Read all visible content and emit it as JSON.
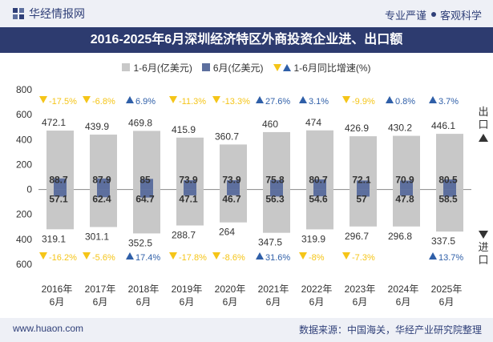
{
  "header": {
    "brand": "华经情报网",
    "tagline_left": "专业严谨",
    "tagline_right": "客观科学"
  },
  "title": "2016-2025年6月深圳经济特区外商投资企业进、出口额",
  "legend": {
    "s1": "1-6月(亿美元)",
    "s2": "6月(亿美元)",
    "s3": "1-6月同比增速(%)"
  },
  "side_labels": {
    "export_text": "出口",
    "import_text": "进口"
  },
  "footer": {
    "url": "www.huaon.com",
    "source": "数据来源：中国海关，华经产业研究院整理"
  },
  "colors": {
    "ytd_bar": "#c8c8c8",
    "june_bar": "#5d6f9e",
    "up": "#2f5fa8",
    "down": "#f5c518",
    "title_bg": "#2d3b6f"
  },
  "chart_data": {
    "type": "bar",
    "title": "2016-2025年6月深圳经济特区外商投资企业进、出口额",
    "categories": [
      "2016年\n6月",
      "2017年\n6月",
      "2018年\n6月",
      "2019年\n6月",
      "2020年\n6月",
      "2021年\n6月",
      "2022年\n6月",
      "2023年\n6月",
      "2024年\n6月",
      "2025年\n6月"
    ],
    "ylim": [
      -600,
      800
    ],
    "yticks": [
      {
        "value": 800,
        "label": "800"
      },
      {
        "value": 600,
        "label": "600"
      },
      {
        "value": 400,
        "label": "400"
      },
      {
        "value": 200,
        "label": "200"
      },
      {
        "value": 0,
        "label": "0"
      },
      {
        "value": -200,
        "label": "200"
      },
      {
        "value": -400,
        "label": "400"
      },
      {
        "value": -600,
        "label": "600"
      }
    ],
    "export": {
      "ytd": [
        472.1,
        439.9,
        469.8,
        415.9,
        360.7,
        460,
        474,
        426.9,
        430.2,
        446.1
      ],
      "june": [
        88.7,
        87.9,
        85,
        73.9,
        73.9,
        75.8,
        80.7,
        72.1,
        70.9,
        80.5
      ],
      "growth_labels": [
        "-17.5%",
        "-6.8%",
        "6.9%",
        "-11.3%",
        "-13.3%",
        "27.6%",
        "3.1%",
        "-9.9%",
        "0.8%",
        "3.7%"
      ],
      "growth_dir": [
        "down",
        "down",
        "up",
        "down",
        "down",
        "up",
        "up",
        "down",
        "up",
        "up"
      ]
    },
    "import": {
      "ytd": [
        319.1,
        301.1,
        352.5,
        288.7,
        264,
        347.5,
        319.9,
        296.7,
        296.8,
        337.5
      ],
      "june": [
        57.1,
        62.4,
        64.7,
        47.1,
        46.7,
        56.3,
        54.6,
        57,
        47.8,
        58.5
      ],
      "growth_labels": [
        "-16.2%",
        "-5.6%",
        "17.4%",
        "-17.8%",
        "-8.6%",
        "31.6%",
        "-8%",
        "-7.3%",
        "",
        "13.7%"
      ],
      "growth_dir": [
        "down",
        "down",
        "up",
        "down",
        "down",
        "up",
        "down",
        "down",
        "",
        "up"
      ]
    }
  }
}
